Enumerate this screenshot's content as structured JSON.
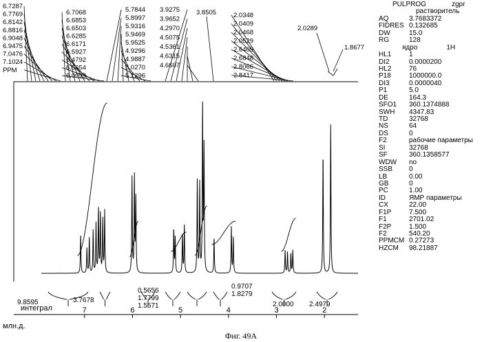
{
  "chart_data": {
    "type": "line",
    "title": "",
    "xlabel": "млн.д.",
    "x_ticks": [
      "7",
      "6",
      "5",
      "4",
      "3",
      "2"
    ],
    "xlim": [
      7.9,
      1.3
    ],
    "peak_labels_left": [
      "6.7287",
      "6.7769",
      "6.8142",
      "6.8816",
      "6.9048",
      "6.9475",
      "7.0476",
      "7.1024",
      "PPM"
    ],
    "peak_labels_group1": [
      "6.7068",
      "6.6853",
      "6.6503",
      "6.6285",
      "6.6171",
      "6.5927",
      "6.4792",
      "6.5654",
      "6.0093"
    ],
    "peak_labels_group2": [
      "5.7844",
      "5.8997",
      "5.9316",
      "5.9469",
      "5.9525",
      "4.9296",
      "4.9887",
      "5.0270",
      "5.1296"
    ],
    "peak_labels_group3": [
      "3.9275",
      "3.9652",
      "4.2970",
      "4.5075",
      "4.5361",
      "4.6315",
      "4.6607"
    ],
    "peak_label_single": "3.8505",
    "peak_labels_group4": [
      "2.0348",
      "2.0409",
      "2.0468",
      "2.0529",
      "2.6409",
      "2.6848",
      "2.8066",
      "2.8417"
    ],
    "peak_label_2": "2.0289",
    "peak_label_3": "1.8677",
    "integrals": [
      "9.8595",
      "3.7678",
      "0.5656",
      "1.7799",
      "1.5571",
      "0.9707",
      "1.8279",
      "2.0000",
      "2.4979"
    ],
    "integral_label": "интеграл",
    "peaks": [
      {
        "x": 7.08,
        "h": 0.22
      },
      {
        "x": 6.95,
        "h": 0.14
      },
      {
        "x": 6.9,
        "h": 0.2
      },
      {
        "x": 6.82,
        "h": 0.24
      },
      {
        "x": 6.76,
        "h": 0.28
      },
      {
        "x": 6.71,
        "h": 0.36
      },
      {
        "x": 6.67,
        "h": 0.33
      },
      {
        "x": 6.62,
        "h": 0.3
      },
      {
        "x": 6.58,
        "h": 0.35
      },
      {
        "x": 6.01,
        "h": 0.54
      },
      {
        "x": 5.96,
        "h": 0.54
      },
      {
        "x": 5.93,
        "h": 0.42
      },
      {
        "x": 5.14,
        "h": 0.25
      },
      {
        "x": 5.11,
        "h": 0.2
      },
      {
        "x": 4.92,
        "h": 0.27
      },
      {
        "x": 4.96,
        "h": 0.22
      },
      {
        "x": 4.65,
        "h": 0.52
      },
      {
        "x": 4.6,
        "h": 0.5
      },
      {
        "x": 4.54,
        "h": 0.94
      },
      {
        "x": 4.51,
        "h": 0.7
      },
      {
        "x": 4.3,
        "h": 0.2
      },
      {
        "x": 3.94,
        "h": 0.26
      },
      {
        "x": 3.9,
        "h": 0.2
      },
      {
        "x": 2.82,
        "h": 0.13
      },
      {
        "x": 2.77,
        "h": 0.12
      },
      {
        "x": 2.7,
        "h": 0.11
      },
      {
        "x": 2.66,
        "h": 0.13
      },
      {
        "x": 2.03,
        "h": 0.68
      },
      {
        "x": 1.87,
        "h": 0.84
      }
    ]
  },
  "params": {
    "header": {
      "key": "PULPROG",
      "value": "zgpr"
    },
    "solvent_label": "растворитель",
    "group1": [
      {
        "k": "AQ",
        "v": "3.7683372"
      },
      {
        "k": "FIDRES",
        "v": "0.132685"
      },
      {
        "k": "DW",
        "v": "15.0"
      },
      {
        "k": "RG",
        "v": "128"
      }
    ],
    "nucleus_label": "ядро",
    "nucleus_value": "1H",
    "group2": [
      {
        "k": "HL1",
        "v": "1"
      },
      {
        "k": "DI2",
        "v": "0.0000200"
      },
      {
        "k": "HL2",
        "v": "76"
      },
      {
        "k": "P18",
        "v": "1000000.0"
      },
      {
        "k": "DI3",
        "v": "0.0000040"
      },
      {
        "k": "P1",
        "v": "5.0"
      },
      {
        "k": "DE",
        "v": "164.3"
      },
      {
        "k": "SFO1",
        "v": "360.1374888"
      },
      {
        "k": "SWH",
        "v": "4347.83"
      },
      {
        "k": "TD",
        "v": "32768"
      },
      {
        "k": "NS",
        "v": "64"
      },
      {
        "k": "DS",
        "v": "0"
      }
    ],
    "work_params": {
      "key": "F2",
      "value": "рабочие параметры"
    },
    "group3": [
      {
        "k": "SI",
        "v": "32768"
      },
      {
        "k": "SF",
        "v": "360.1358577"
      },
      {
        "k": "WDW",
        "v": "no"
      },
      {
        "k": "SSB",
        "v": "0"
      },
      {
        "k": "LB",
        "v": "0.00"
      },
      {
        "k": "GB",
        "v": "0"
      },
      {
        "k": "PC",
        "v": "1.00"
      }
    ],
    "nmr_params": {
      "key": "ID",
      "value": "ЯМР параметры"
    },
    "group4": [
      {
        "k": "CX",
        "v": "22.00"
      },
      {
        "k": "F1P",
        "v": "7.500"
      },
      {
        "k": "F1",
        "v": "2701.02"
      },
      {
        "k": "F2P",
        "v": "1.500"
      },
      {
        "k": "F2",
        "v": "540.20"
      },
      {
        "k": "PPMCM",
        "v": "0.27273"
      },
      {
        "k": "HZCM",
        "v": "98.21887"
      }
    ]
  },
  "caption": "Фиг. 49А"
}
